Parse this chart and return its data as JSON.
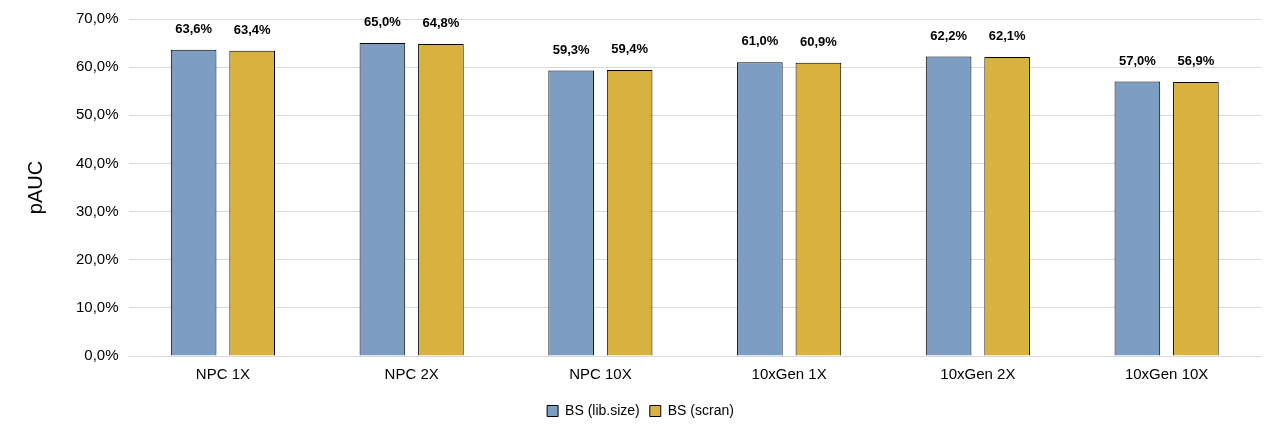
{
  "chart_data": {
    "type": "bar",
    "ylabel": "pAUC",
    "categories": [
      "NPC 1X",
      "NPC 2X",
      "NPC 10X",
      "10xGen 1X",
      "10xGen 2X",
      "10xGen 10X"
    ],
    "series": [
      {
        "name": "BS (lib.size)",
        "color": "#7d9ec2",
        "values": [
          63.6,
          65.0,
          59.3,
          61.0,
          62.2,
          57.0
        ],
        "value_labels": [
          "63,6%",
          "65,0%",
          "59,3%",
          "61,0%",
          "62,2%",
          "57,0%"
        ]
      },
      {
        "name": "BS (scran)",
        "color": "#d9b23e",
        "values": [
          63.4,
          64.8,
          59.4,
          60.9,
          62.1,
          56.9
        ],
        "value_labels": [
          "63,4%",
          "64,8%",
          "59,4%",
          "60,9%",
          "62,1%",
          "56,9%"
        ]
      }
    ],
    "ylim": [
      0,
      70
    ],
    "yticks": [
      {
        "value": 0,
        "label": "0,0%"
      },
      {
        "value": 10,
        "label": "10,0%"
      },
      {
        "value": 20,
        "label": "20,0%"
      },
      {
        "value": 30,
        "label": "30,0%"
      },
      {
        "value": 40,
        "label": "40,0%"
      },
      {
        "value": 50,
        "label": "50,0%"
      },
      {
        "value": 60,
        "label": "60,0%"
      },
      {
        "value": 70,
        "label": "70,0%"
      }
    ],
    "grid": "y",
    "legend": "bottom"
  }
}
